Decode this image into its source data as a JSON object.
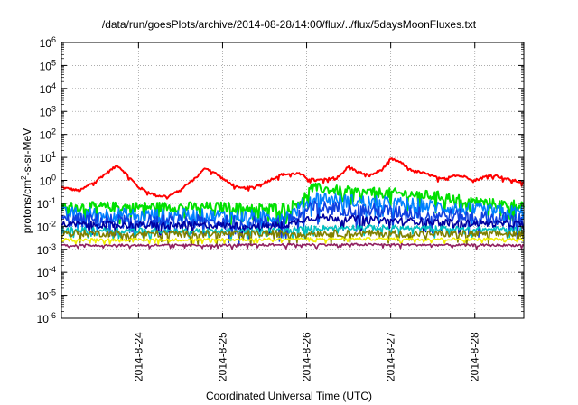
{
  "chart_data": {
    "type": "line",
    "title": "/data/run/goesPlots/archive/2014-08-28/14:00/flux/../flux/5daysMoonFluxes.txt",
    "xlabel": "Coordinated Universal Time (UTC)",
    "ylabel_parts": [
      "protons/cm",
      "2",
      "-s-sr-MeV"
    ],
    "yscale": "log",
    "ylim": [
      1e-06,
      1000000.0
    ],
    "y_ticks": [
      {
        "base": "10",
        "exp": "6",
        "value": 1000000.0
      },
      {
        "base": "10",
        "exp": "5",
        "value": 100000.0
      },
      {
        "base": "10",
        "exp": "4",
        "value": 10000.0
      },
      {
        "base": "10",
        "exp": "3",
        "value": 1000.0
      },
      {
        "base": "10",
        "exp": "2",
        "value": 100.0
      },
      {
        "base": "10",
        "exp": "1",
        "value": 10.0
      },
      {
        "base": "10",
        "exp": "0",
        "value": 1
      },
      {
        "base": "10",
        "exp": "-1",
        "value": 0.1
      },
      {
        "base": "10",
        "exp": "-2",
        "value": 0.01
      },
      {
        "base": "10",
        "exp": "-3",
        "value": 0.001
      },
      {
        "base": "10",
        "exp": "-4",
        "value": 0.0001
      },
      {
        "base": "10",
        "exp": "-5",
        "value": 1e-05
      },
      {
        "base": "10",
        "exp": "-6",
        "value": 1e-06
      }
    ],
    "xlim": [
      "2014-08-23 02:00",
      "2014-08-28 14:00"
    ],
    "x_ticks": [
      {
        "label": "2014-8-24",
        "day": 1
      },
      {
        "label": "2014-8-25",
        "day": 2
      },
      {
        "label": "2014-8-26",
        "day": 3
      },
      {
        "label": "2014-8-27",
        "day": 4
      },
      {
        "label": "2014-8-28",
        "day": 5
      }
    ],
    "x_units": "days after 2014-08-23 00:00 UTC",
    "xmin_day": 0.083,
    "xmax_day": 5.583,
    "grid": true,
    "series": [
      {
        "color": "#ff0000",
        "noise": 0.05,
        "x": [
          0.083,
          0.3,
          0.5,
          0.65,
          0.75,
          0.85,
          1.0,
          1.2,
          1.35,
          1.45,
          1.55,
          1.7,
          1.8,
          1.9,
          2.05,
          2.2,
          2.35,
          2.5,
          2.7,
          2.9,
          3.0,
          3.1,
          3.25,
          3.4,
          3.5,
          3.6,
          3.75,
          3.9,
          4.0,
          4.1,
          4.25,
          4.45,
          4.6,
          4.75,
          4.9,
          5.0,
          5.2,
          5.4,
          5.583
        ],
        "y": [
          0.5,
          0.35,
          1.0,
          2.5,
          4.5,
          2.0,
          0.5,
          0.22,
          0.2,
          0.3,
          0.55,
          1.5,
          3.5,
          2.2,
          0.9,
          0.45,
          0.5,
          0.8,
          1.8,
          2.0,
          1.3,
          1.0,
          1.1,
          1.7,
          4.0,
          2.4,
          1.6,
          3.0,
          8.5,
          6.5,
          2.8,
          1.8,
          1.1,
          1.7,
          1.4,
          1.0,
          1.8,
          1.1,
          0.8
        ]
      },
      {
        "color": "#00e000",
        "noise": 0.22,
        "x": [
          0.083,
          0.5,
          1.0,
          1.5,
          2.0,
          2.5,
          2.8,
          2.95,
          3.05,
          3.15,
          3.4,
          3.7,
          4.0,
          4.3,
          4.6,
          5.0,
          5.3,
          5.583
        ],
        "y": [
          0.07,
          0.07,
          0.07,
          0.07,
          0.07,
          0.06,
          0.07,
          0.15,
          0.45,
          0.45,
          0.35,
          0.3,
          0.28,
          0.24,
          0.2,
          0.12,
          0.09,
          0.09
        ]
      },
      {
        "color": "#0080ff",
        "noise": 0.3,
        "x": [
          0.083,
          0.5,
          1.0,
          1.5,
          2.0,
          2.5,
          2.8,
          2.95,
          3.1,
          3.3,
          3.6,
          4.0,
          4.4,
          4.8,
          5.2,
          5.583
        ],
        "y": [
          0.035,
          0.035,
          0.03,
          0.03,
          0.028,
          0.026,
          0.03,
          0.08,
          0.18,
          0.15,
          0.12,
          0.1,
          0.08,
          0.06,
          0.045,
          0.04
        ]
      },
      {
        "color": "#1040e0",
        "noise": 0.3,
        "x": [
          0.083,
          0.5,
          1.0,
          1.5,
          2.0,
          2.5,
          2.8,
          2.95,
          3.1,
          3.4,
          3.7,
          4.0,
          4.4,
          4.8,
          5.2,
          5.583
        ],
        "y": [
          0.018,
          0.018,
          0.016,
          0.016,
          0.015,
          0.014,
          0.017,
          0.04,
          0.07,
          0.06,
          0.05,
          0.045,
          0.035,
          0.028,
          0.022,
          0.02
        ]
      },
      {
        "color": "#0000a0",
        "noise": 0.15,
        "x": [
          0.083,
          0.5,
          1.0,
          1.5,
          2.0,
          2.5,
          2.8,
          2.95,
          3.1,
          3.4,
          3.7,
          4.0,
          4.4,
          4.8,
          5.2,
          5.583
        ],
        "y": [
          0.012,
          0.012,
          0.011,
          0.011,
          0.011,
          0.01,
          0.012,
          0.02,
          0.025,
          0.022,
          0.02,
          0.018,
          0.016,
          0.014,
          0.013,
          0.012
        ]
      },
      {
        "color": "#00c0c0",
        "noise": 0.12,
        "x": [
          0.083,
          1.0,
          2.0,
          2.8,
          3.0,
          3.5,
          4.0,
          4.5,
          5.0,
          5.583
        ],
        "y": [
          0.007,
          0.0065,
          0.006,
          0.0065,
          0.008,
          0.009,
          0.0085,
          0.008,
          0.0075,
          0.007
        ]
      },
      {
        "color": "#808000",
        "noise": 0.15,
        "x": [
          0.083,
          1.0,
          2.0,
          3.0,
          4.0,
          5.0,
          5.583
        ],
        "y": [
          0.005,
          0.0048,
          0.0046,
          0.005,
          0.0048,
          0.0046,
          0.0046
        ]
      },
      {
        "color": "#f0f000",
        "noise": 0.06,
        "x": [
          0.083,
          1.0,
          2.0,
          3.0,
          4.0,
          5.0,
          5.583
        ],
        "y": [
          0.0026,
          0.0026,
          0.0026,
          0.0028,
          0.0028,
          0.0027,
          0.0027
        ]
      },
      {
        "color": "#902060",
        "noise": 0.05,
        "x": [
          0.083,
          1.0,
          2.0,
          3.0,
          4.0,
          5.0,
          5.583
        ],
        "y": [
          0.0015,
          0.0015,
          0.0015,
          0.0016,
          0.0016,
          0.0015,
          0.0015
        ]
      }
    ]
  }
}
